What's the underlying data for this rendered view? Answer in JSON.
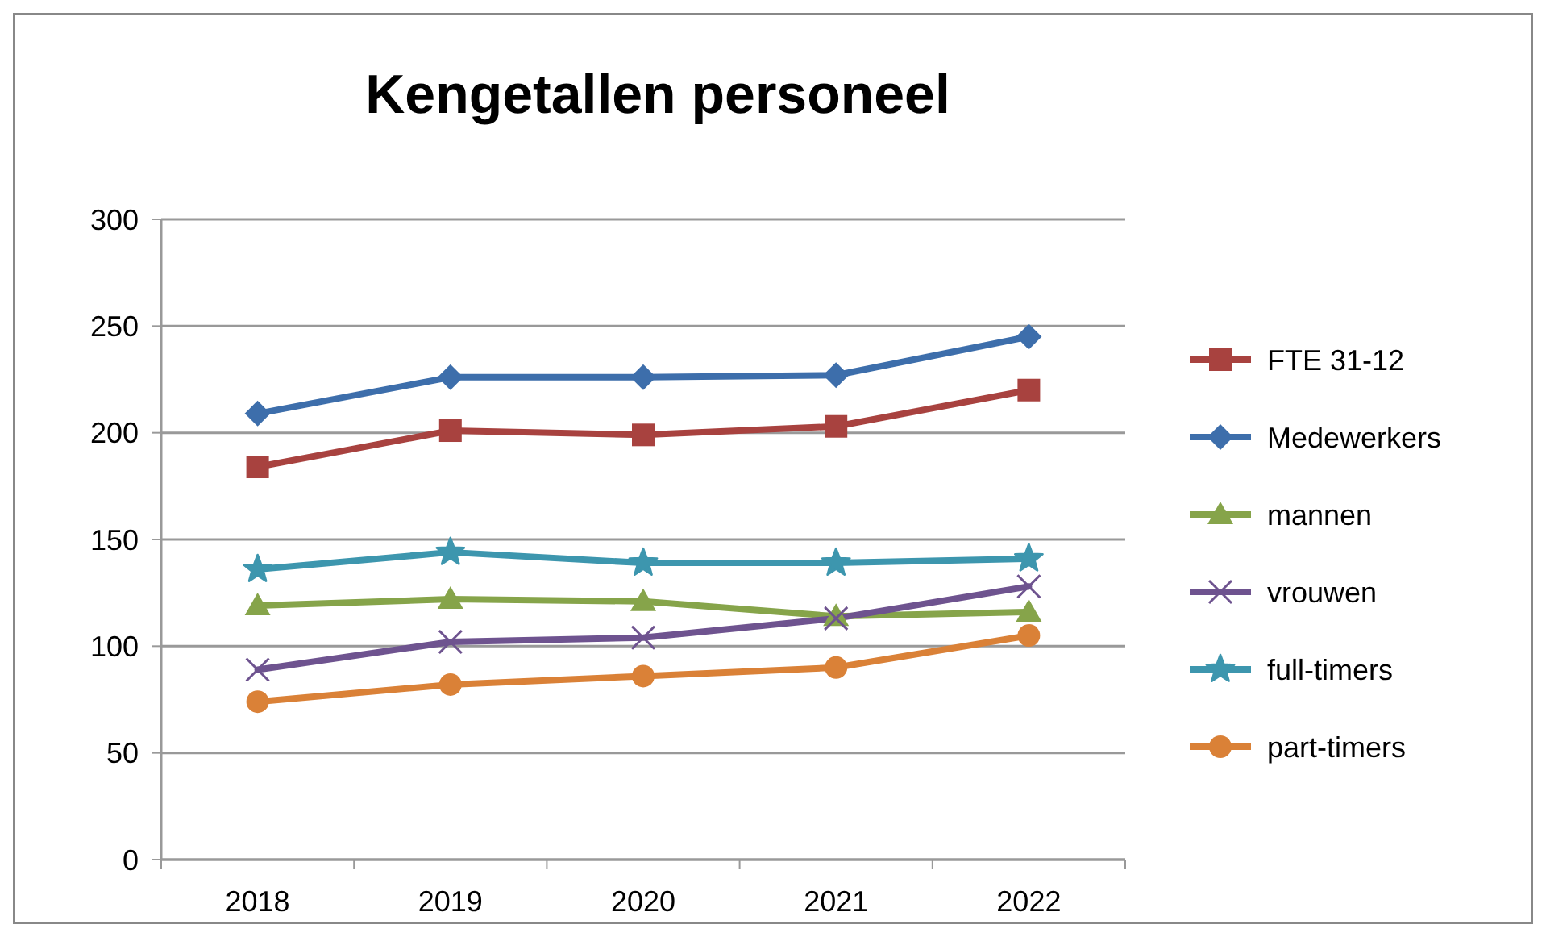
{
  "chart_data": {
    "type": "line",
    "title": "Kengetallen personeel",
    "categories": [
      "2018",
      "2019",
      "2020",
      "2021",
      "2022"
    ],
    "ylim": [
      0,
      300
    ],
    "yticks": [
      0,
      50,
      100,
      150,
      200,
      250,
      300
    ],
    "grid": "y",
    "legend": "right",
    "series": [
      {
        "name": "FTE 31-12",
        "color": "#a8423f",
        "marker": "square",
        "values": [
          184,
          201,
          199,
          203,
          220
        ]
      },
      {
        "name": "Medewerkers",
        "color": "#3d6eab",
        "marker": "diamond",
        "values": [
          209,
          226,
          226,
          227,
          245
        ]
      },
      {
        "name": "mannen",
        "color": "#86a44a",
        "marker": "triangle",
        "values": [
          119,
          122,
          121,
          114,
          116
        ]
      },
      {
        "name": "vrouwen",
        "color": "#6e538f",
        "marker": "cross",
        "values": [
          89,
          102,
          104,
          113,
          128
        ]
      },
      {
        "name": "full-timers",
        "color": "#3d96ae",
        "marker": "star",
        "values": [
          136,
          144,
          139,
          139,
          141
        ]
      },
      {
        "name": "part-timers",
        "color": "#da8137",
        "marker": "circle",
        "values": [
          74,
          82,
          86,
          90,
          105
        ]
      }
    ]
  }
}
